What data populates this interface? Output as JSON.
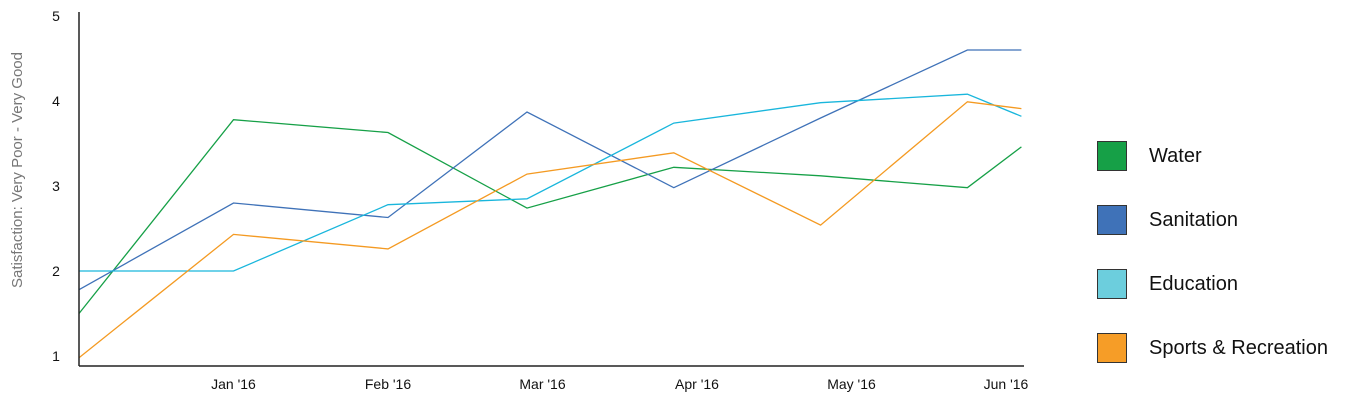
{
  "chart_data": {
    "type": "line",
    "title": "",
    "xlabel": "",
    "ylabel": "Satisfaction: Very Poor - Very Good",
    "categories": [
      "Jan '16",
      "Feb '16",
      "Mar '16",
      "Apr '16",
      "May '16",
      "Jun '16"
    ],
    "y_ticks": [
      "1",
      "2",
      "3",
      "4",
      "5"
    ],
    "ylim": [
      1,
      5
    ],
    "grid": false,
    "legend_position": "right",
    "series": [
      {
        "name": "Water",
        "color": "#16a047",
        "points": [
          [
            0.0,
            1.5
          ],
          [
            1.0,
            3.78
          ],
          [
            2.0,
            3.63
          ],
          [
            2.9,
            2.74
          ],
          [
            3.85,
            3.22
          ],
          [
            4.8,
            3.12
          ],
          [
            5.75,
            2.98
          ],
          [
            6.1,
            3.46
          ]
        ]
      },
      {
        "name": "Sanitation",
        "color": "#3f72b8",
        "points": [
          [
            0.0,
            1.78
          ],
          [
            1.0,
            2.8
          ],
          [
            2.0,
            2.63
          ],
          [
            2.9,
            3.87
          ],
          [
            3.85,
            2.98
          ],
          [
            4.8,
            3.8
          ],
          [
            5.75,
            4.6
          ],
          [
            6.1,
            4.6
          ]
        ]
      },
      {
        "name": "Education",
        "color": "#19b6dc",
        "points": [
          [
            0.0,
            2.0
          ],
          [
            1.0,
            2.0
          ],
          [
            2.0,
            2.78
          ],
          [
            2.9,
            2.85
          ],
          [
            3.85,
            3.74
          ],
          [
            4.8,
            3.98
          ],
          [
            5.75,
            4.08
          ],
          [
            6.1,
            3.82
          ]
        ]
      },
      {
        "name": "Sports & Recreation",
        "color": "#f49a22",
        "points": [
          [
            0.0,
            0.98
          ],
          [
            1.0,
            2.43
          ],
          [
            2.0,
            2.26
          ],
          [
            2.9,
            3.14
          ],
          [
            3.85,
            3.39
          ],
          [
            4.8,
            2.54
          ],
          [
            5.75,
            3.99
          ],
          [
            6.1,
            3.91
          ]
        ]
      }
    ]
  },
  "legend": [
    {
      "label": "Water",
      "swatch": "#16a047"
    },
    {
      "label": "Sanitation",
      "swatch": "#3f72b8"
    },
    {
      "label": "Education",
      "swatch": "#6ccedd"
    },
    {
      "label": "Sports & Recreation",
      "swatch": "#f69d27"
    }
  ]
}
